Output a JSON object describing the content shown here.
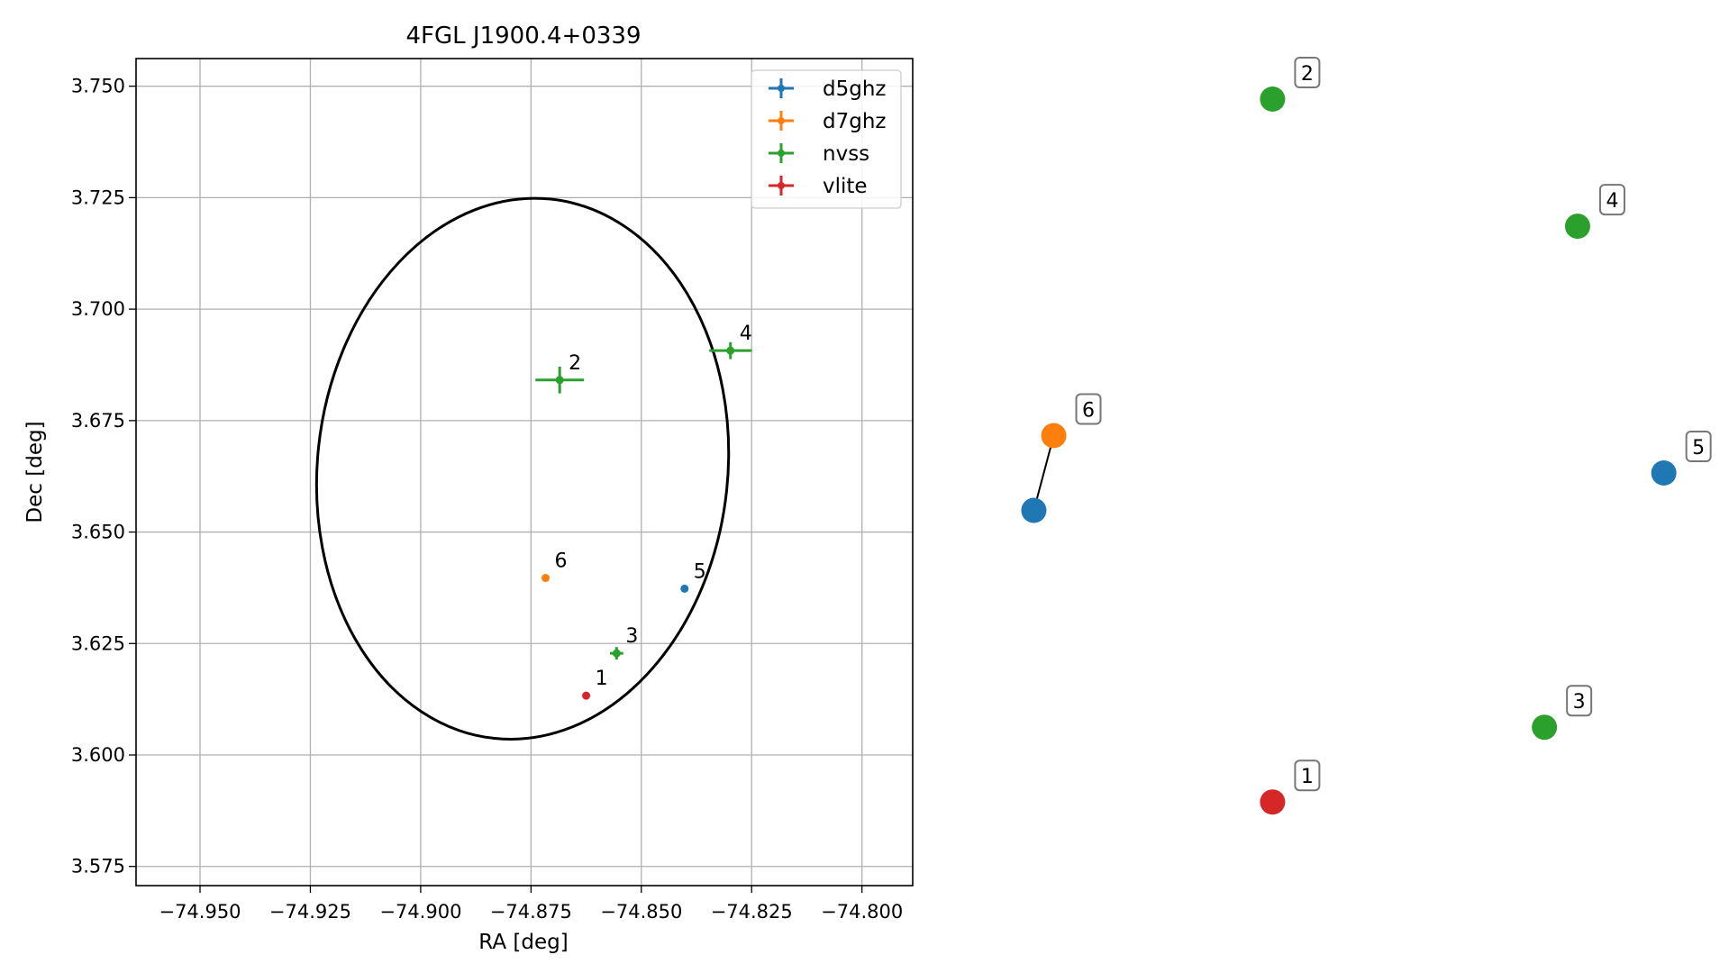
{
  "chart_data": [
    {
      "type": "scatter",
      "title": "4FGL J1900.4+0339",
      "xlabel": "RA [deg]",
      "ylabel": "Dec [deg]",
      "xlim": [
        -74.9645,
        -74.7885
      ],
      "ylim": [
        3.5707,
        3.7562
      ],
      "xticks": [
        -74.95,
        -74.925,
        -74.9,
        -74.875,
        -74.85,
        -74.825,
        -74.8
      ],
      "xtick_labels": [
        "−74.950",
        "−74.925",
        "−74.900",
        "−74.875",
        "−74.850",
        "−74.825",
        "−74.800"
      ],
      "yticks": [
        3.575,
        3.6,
        3.625,
        3.65,
        3.675,
        3.7,
        3.725,
        3.75
      ],
      "ytick_labels": [
        "3.575",
        "3.600",
        "3.625",
        "3.650",
        "3.675",
        "3.700",
        "3.725",
        "3.750"
      ],
      "grid": true,
      "legend_position": "top-right",
      "series": [
        {
          "name": "d5ghz",
          "color": "#1f77b4",
          "points": [
            {
              "label": "5",
              "x": -74.8402,
              "y": 3.6373,
              "xerr": 0.0002,
              "yerr": 0.0002
            }
          ]
        },
        {
          "name": "d7ghz",
          "color": "#ff7f0e",
          "points": [
            {
              "label": "6",
              "x": -74.8717,
              "y": 3.6397,
              "xerr": 0.0002,
              "yerr": 0.0002
            }
          ]
        },
        {
          "name": "nvss",
          "color": "#2ca02c",
          "points": [
            {
              "label": "2",
              "x": -74.8685,
              "y": 3.6841,
              "xerr": 0.0055,
              "yerr": 0.003
            },
            {
              "label": "3",
              "x": -74.8556,
              "y": 3.6228,
              "xerr": 0.0015,
              "yerr": 0.0014
            },
            {
              "label": "4",
              "x": -74.8298,
              "y": 3.6907,
              "xerr": 0.0048,
              "yerr": 0.0019
            }
          ]
        },
        {
          "name": "vlite",
          "color": "#d62728",
          "points": [
            {
              "label": "1",
              "x": -74.8625,
              "y": 3.6133,
              "xerr": 0.0002,
              "yerr": 0.0002
            }
          ]
        }
      ],
      "ellipse": {
        "center_x": -74.8769,
        "center_y": 3.6642,
        "semi_major_dec": 0.0608,
        "semi_minor_ra": 0.0465,
        "tilt_deg": 6,
        "color": "#000000"
      }
    },
    {
      "type": "scatter",
      "points": [
        {
          "label": "1",
          "color": "#d62728",
          "x": 0.4,
          "y": 0.06
        },
        {
          "label": "2",
          "color": "#2ca02c",
          "x": 0.4,
          "y": 1.0
        },
        {
          "label": "3",
          "color": "#2ca02c",
          "x": 0.81,
          "y": 0.16
        },
        {
          "label": "4",
          "color": "#2ca02c",
          "x": 0.86,
          "y": 0.83
        },
        {
          "label": "5",
          "color": "#1f77b4",
          "x": 0.99,
          "y": 0.5
        },
        {
          "label": "6",
          "color": "#ff7f0e",
          "x": 0.07,
          "y": 0.55
        },
        {
          "label": "",
          "color": "#1f77b4",
          "x": 0.04,
          "y": 0.45
        }
      ],
      "links": [
        {
          "from": 5,
          "to": 6
        }
      ]
    }
  ]
}
